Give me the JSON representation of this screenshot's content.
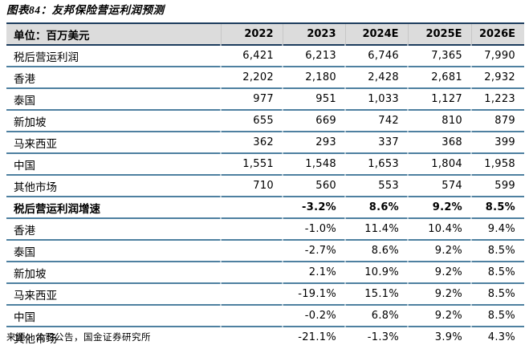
{
  "title": "图表84：友邦保险营运利润预测",
  "source_note": "来源：公司公告，国金证券研究所",
  "colors": {
    "header_bg": "#dcdcdc",
    "header_border": "#1d3d5e",
    "row_border": "#4e80a0",
    "table_bottom_border": "#2f6e99"
  },
  "chart_data": {
    "type": "table",
    "title": "图表84：友邦保险营运利润预测",
    "unit_label": "单位：百万美元",
    "columns": [
      "2022",
      "2023",
      "2024E",
      "2025E",
      "2026E"
    ],
    "rows": [
      {
        "label": "税后营运利润",
        "values": [
          "6,421",
          "6,213",
          "6,746",
          "7,365",
          "7,990"
        ],
        "bold": false
      },
      {
        "label": "香港",
        "values": [
          "2,202",
          "2,180",
          "2,428",
          "2,681",
          "2,932"
        ],
        "bold": false
      },
      {
        "label": "泰国",
        "values": [
          "977",
          "951",
          "1,033",
          "1,127",
          "1,223"
        ],
        "bold": false
      },
      {
        "label": "新加坡",
        "values": [
          "655",
          "669",
          "742",
          "810",
          "879"
        ],
        "bold": false
      },
      {
        "label": "马来西亚",
        "values": [
          "362",
          "293",
          "337",
          "368",
          "399"
        ],
        "bold": false
      },
      {
        "label": "中国",
        "values": [
          "1,551",
          "1,548",
          "1,653",
          "1,804",
          "1,958"
        ],
        "bold": false
      },
      {
        "label": "其他市场",
        "values": [
          "710",
          "560",
          "553",
          "574",
          "599"
        ],
        "bold": false
      },
      {
        "label": "税后营运利润增速",
        "values": [
          "",
          "-3.2%",
          "8.6%",
          "9.2%",
          "8.5%"
        ],
        "bold": true
      },
      {
        "label": "香港",
        "values": [
          "",
          "-1.0%",
          "11.4%",
          "10.4%",
          "9.4%"
        ],
        "bold": false
      },
      {
        "label": "泰国",
        "values": [
          "",
          "-2.7%",
          "8.6%",
          "9.2%",
          "8.5%"
        ],
        "bold": false
      },
      {
        "label": "新加坡",
        "values": [
          "",
          "2.1%",
          "10.9%",
          "9.2%",
          "8.5%"
        ],
        "bold": false
      },
      {
        "label": "马来西亚",
        "values": [
          "",
          "-19.1%",
          "15.1%",
          "9.2%",
          "8.5%"
        ],
        "bold": false
      },
      {
        "label": "中国",
        "values": [
          "",
          "-0.2%",
          "6.8%",
          "9.2%",
          "8.5%"
        ],
        "bold": false
      },
      {
        "label": "其他市场",
        "values": [
          "",
          "-21.1%",
          "-1.3%",
          "3.9%",
          "4.3%"
        ],
        "bold": false
      }
    ]
  }
}
